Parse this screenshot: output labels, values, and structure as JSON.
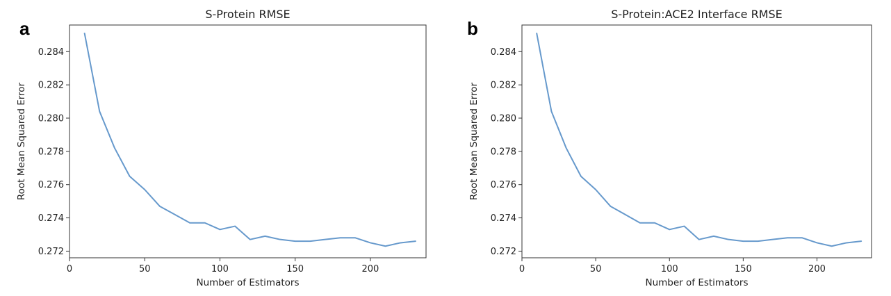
{
  "chart_data": [
    {
      "panel": "a",
      "type": "line",
      "title": "S-Protein  RMSE",
      "xlabel": "Number of Estimators",
      "ylabel": "Root Mean Squared Error",
      "xlim": [
        0,
        237
      ],
      "ylim": [
        0.2716,
        0.2856
      ],
      "xticks": [
        0,
        50,
        100,
        150,
        200
      ],
      "yticks": [
        0.272,
        0.274,
        0.276,
        0.278,
        0.28,
        0.282,
        0.284
      ],
      "grid": false,
      "color": "#6699cc",
      "x": [
        10,
        20,
        30,
        40,
        50,
        60,
        70,
        80,
        90,
        100,
        110,
        120,
        130,
        140,
        150,
        160,
        170,
        180,
        190,
        200,
        210,
        220,
        230
      ],
      "y": [
        0.2851,
        0.2804,
        0.2782,
        0.2765,
        0.2757,
        0.2747,
        0.2742,
        0.2737,
        0.2737,
        0.2733,
        0.2735,
        0.2727,
        0.2729,
        0.2727,
        0.2726,
        0.2726,
        0.2727,
        0.2728,
        0.2728,
        0.2725,
        0.2723,
        0.2725,
        0.2726
      ]
    },
    {
      "panel": "b",
      "type": "line",
      "title": "S-Protein:ACE2 Interface  RMSE",
      "xlabel": "Number of Estimators",
      "ylabel": "Root Mean Squared Error",
      "xlim": [
        0,
        237
      ],
      "ylim": [
        0.2716,
        0.2856
      ],
      "xticks": [
        0,
        50,
        100,
        150,
        200
      ],
      "yticks": [
        0.272,
        0.274,
        0.276,
        0.278,
        0.28,
        0.282,
        0.284
      ],
      "grid": false,
      "color": "#6699cc",
      "x": [
        10,
        20,
        30,
        40,
        50,
        60,
        70,
        80,
        90,
        100,
        110,
        120,
        130,
        140,
        150,
        160,
        170,
        180,
        190,
        200,
        210,
        220,
        230
      ],
      "y": [
        0.2851,
        0.2804,
        0.2782,
        0.2765,
        0.2757,
        0.2747,
        0.2742,
        0.2737,
        0.2737,
        0.2733,
        0.2735,
        0.2727,
        0.2729,
        0.2727,
        0.2726,
        0.2726,
        0.2727,
        0.2728,
        0.2728,
        0.2725,
        0.2723,
        0.2725,
        0.2726
      ]
    }
  ]
}
